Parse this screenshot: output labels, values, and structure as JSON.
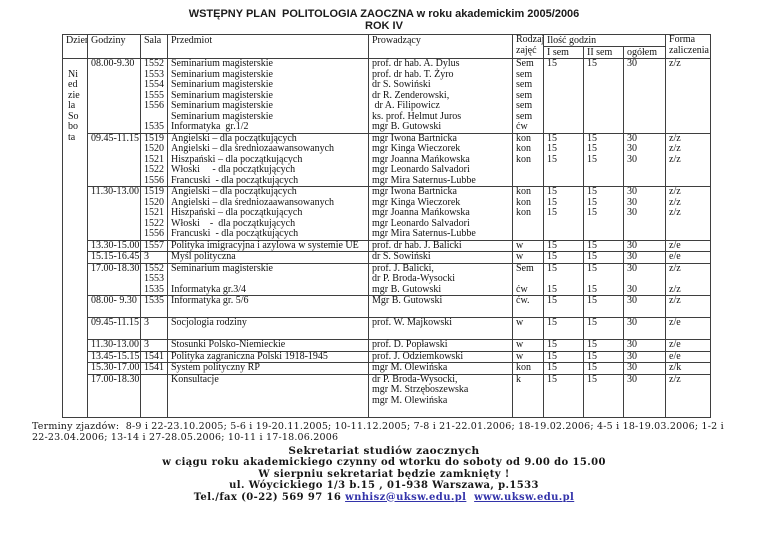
{
  "title": {
    "line1": "WSTĘPNY PLAN  POLITOLOGIA ZAOCZNA w roku akademickim 2005/2006",
    "line2": "ROK IV"
  },
  "table": {
    "headers": {
      "day": "Dzień",
      "hours": "Godziny",
      "room": "Sala",
      "subject": "Przedmiot",
      "lecturer": "Prowadzący",
      "type_l1": "Rodzaj",
      "type_l2": "zajęć",
      "hours_group": "Ilość godzin",
      "sem1": "I sem",
      "sem2": "II sem",
      "total": "ogółem",
      "form_l1": "Forma",
      "form_l2": "zaliczenia"
    },
    "day_lines": [
      "",
      "Ni",
      "ed",
      "zie",
      "la",
      "So",
      "bo",
      "ta"
    ],
    "groups": [
      {
        "time": "08.00-9.30",
        "lines": [
          {
            "room": "1552",
            "subject": "Seminarium magisterskie",
            "lecturer": "prof. dr hab. A. Dylus",
            "type": "Sem",
            "sem1": "15",
            "sem2": "15",
            "total": "30",
            "form": "z/z"
          },
          {
            "room": "1553",
            "subject": "Seminarium magisterskie",
            "lecturer": "prof. dr hab. T. Żyro",
            "type": "sem"
          },
          {
            "room": "1554",
            "subject": "Seminarium magisterskie",
            "lecturer": "dr S. Sowiński",
            "type": "sem"
          },
          {
            "room": "1555",
            "subject": "Seminarium magisterskie",
            "lecturer": "dr R. Zenderowski,",
            "type": "sem"
          },
          {
            "room": "1556",
            "subject": "Seminarium magisterskie",
            "lecturer": " dr A. Filipowicz",
            "type": "sem"
          },
          {
            "subject": "Seminarium magisterskie",
            "lecturer": "ks. prof. Helmut Juros",
            "type": "sem"
          },
          {
            "room": "1535",
            "subject": "Informatyka  gr.1/2",
            "lecturer": "mgr B. Gutowski",
            "type": "ćw"
          }
        ]
      },
      {
        "time": "09.45-11.15",
        "lines": [
          {
            "room": "1519",
            "subject": "Angielski – dla początkujących",
            "lecturer": "mgr Iwona Bartnicka",
            "type": "kon",
            "sem1": "15",
            "sem2": "15",
            "total": "30",
            "form": "z/z"
          },
          {
            "room": "1520",
            "subject": "Angielski – dla średniozaawansowanych",
            "lecturer": "mgr Kinga Wieczorek",
            "type": "kon",
            "sem1": "15",
            "sem2": "15",
            "total": "30",
            "form": "z/z"
          },
          {
            "room": "1521",
            "subject": "Hiszpański – dla początkujących",
            "lecturer": "mgr Joanna Mańkowska",
            "type": "kon",
            "sem1": "15",
            "sem2": "15",
            "total": "30",
            "form": "z/z"
          },
          {
            "room": "1522",
            "subject": "Włoski     - dla początkujących",
            "lecturer": "mgr Leonardo Salvadori"
          },
          {
            "room": "1556",
            "subject": "Francuski  - dla początkujących",
            "lecturer": "mgr Mira Saternus-Lubbe"
          }
        ]
      },
      {
        "time": "11.30-13.00",
        "lines": [
          {
            "room": "1519",
            "subject": "Angielski – dla początkujących",
            "lecturer": "mgr Iwona Bartnicka",
            "type": "kon",
            "sem1": "15",
            "sem2": "15",
            "total": "30",
            "form": "z/z"
          },
          {
            "room": "1520",
            "subject": "Angielski – dla średniozaawansowanych",
            "lecturer": "mgr Kinga Wieczorek",
            "type": "kon",
            "sem1": "15",
            "sem2": "15",
            "total": "30",
            "form": "z/z"
          },
          {
            "room": "1521",
            "subject": "Hiszpański – dla początkujących",
            "lecturer": "mgr Joanna Mańkowska",
            "type": "kon",
            "sem1": "15",
            "sem2": "15",
            "total": "30",
            "form": "z/z"
          },
          {
            "room": "1522",
            "subject": "Włoski    -  dla początkujących",
            "lecturer": "mgr Leonardo Salvadori"
          },
          {
            "room": "1556",
            "subject": "Francuski  - dla początkujących",
            "lecturer": "mgr Mira Saternus-Lubbe"
          }
        ]
      },
      {
        "time": "13.30-15.00",
        "lines": [
          {
            "room": "1557",
            "subject": "Polityka imigracyjna i azylowa w systemie UE",
            "lecturer": "prof. dr hab. J. Balicki",
            "type": "w",
            "sem1": "15",
            "sem2": "15",
            "total": "30",
            "form": "z/e"
          }
        ]
      },
      {
        "time": "15.15-16.45",
        "lines": [
          {
            "room": "3",
            "subject": "Myśl polityczna",
            "lecturer": "dr S. Sowiński",
            "type": "w",
            "sem1": "15",
            "sem2": "15",
            "total": "30",
            "form": "e/e"
          }
        ]
      },
      {
        "time": "17.00-18.30",
        "lines": [
          {
            "room": "1552",
            "subject": "Seminarium magisterskie",
            "lecturer": "prof. J. Balicki,",
            "type": "Sem",
            "sem1": "15",
            "sem2": "15",
            "total": "30",
            "form": "z/z"
          },
          {
            "room": "1553",
            "lecturer": "dr P. Broda-Wysocki"
          },
          {
            "room": "1535",
            "subject": "Informatyka gr.3/4",
            "lecturer": "mgr B. Gutowski",
            "type": "ćw",
            "sem1": "15",
            "sem2": "15",
            "total": "30",
            "form": "z/z"
          }
        ]
      },
      {
        "time": "08.00- 9.30",
        "lines": [
          {
            "room": "1535",
            "subject": "Informatyka gr. 5/6",
            "lecturer": "Mgr B. Gutowski",
            "type": "ćw.",
            "sem1": "15",
            "sem2": "15",
            "total": "30",
            "form": "z/z"
          },
          {}
        ]
      },
      {
        "time": "09.45-11.15",
        "lines": [
          {
            "room": "3",
            "subject": "Socjologia rodziny",
            "lecturer": "prof. W. Majkowski",
            "type": "w",
            "sem1": "15",
            "sem2": "15",
            "total": "30",
            "form": "z/e"
          },
          {}
        ]
      },
      {
        "time": "11.30-13.00",
        "lines": [
          {
            "room": "3",
            "subject": "Stosunki Polsko-Niemieckie",
            "lecturer": "prof. D. Popławski",
            "type": "w",
            "sem1": "15",
            "sem2": "15",
            "total": "30",
            "form": "z/e"
          }
        ]
      },
      {
        "time": "13.45-15.15",
        "lines": [
          {
            "room": "1541",
            "subject": "Polityka zagraniczna Polski 1918-1945",
            "lecturer": "prof. J. Odziemkowski",
            "type": "w",
            "sem1": "15",
            "sem2": "15",
            "total": "30",
            "form": "e/e"
          }
        ]
      },
      {
        "time": "15.30-17.00",
        "lines": [
          {
            "room": "1541",
            "subject": "System polityczny RP",
            "lecturer": "mgr M. Olewińska",
            "type": "kon",
            "sem1": "15",
            "sem2": "15",
            "total": "30",
            "form": "z/k"
          }
        ]
      },
      {
        "time": "17.00-18.30",
        "lines": [
          {
            "subject": "Konsultacje",
            "lecturer": "dr P. Broda-Wysocki,",
            "type": "k",
            "sem1": "15",
            "sem2": "15",
            "total": "30",
            "form": "z/z"
          },
          {
            "lecturer": "mgr M. Strzęboszewska"
          },
          {
            "lecturer": "mgr M. Olewińska"
          },
          {}
        ]
      }
    ]
  },
  "footer": {
    "terminy": "Terminy zjazdów:  8-9 i 22-23.10.2005; 5-6 i 19-20.11.2005; 10-11.12.2005; 7-8 i 21-22.01.2006; 18-19.02.2006; 4-5 i 18-19.03.2006; 1-2 i 22-23.04.2006; 13-14 i 27-28.05.2006; 10-11 i 17-18.06.2006",
    "sekretariat_title": "Sekretariat studiów zaocznych",
    "line2": "w ciągu roku akademickiego czynny od wtorku do soboty od 9.00 do 15.00",
    "line3": "W sierpniu sekretariat będzie zamknięty !",
    "line4": "ul. Wóycickiego 1/3 b.15 , 01-938 Warszawa, p.1533",
    "tel_prefix": "Tel./fax (0-22) 569 97 16 ",
    "email": "wnhisz@uksw.edu.pl",
    "separator": "  ",
    "website": "www.uksw.edu.pl",
    "link_color": "#3333aa"
  }
}
